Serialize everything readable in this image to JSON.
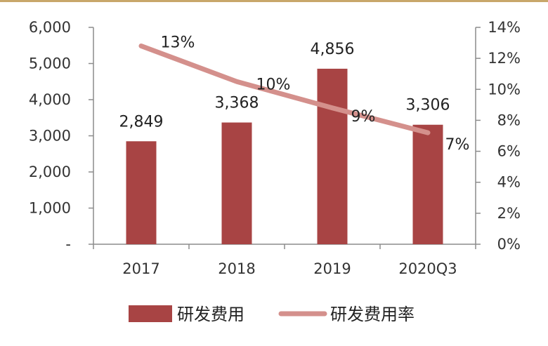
{
  "colors": {
    "bar": "#A84444",
    "line": "#D4908C",
    "axis": "#8C8C8C",
    "top_rule": "#C8A76A"
  },
  "chart_data": {
    "type": "bar+line",
    "categories": [
      "2017",
      "2018",
      "2019",
      "2020Q3"
    ],
    "series": [
      {
        "name": "研发费用",
        "type": "bar",
        "axis": "left",
        "values": [
          2849,
          3368,
          4856,
          3306
        ],
        "labels": [
          "2,849",
          "3,368",
          "4,856",
          "3,306"
        ]
      },
      {
        "name": "研发费用率",
        "type": "line",
        "axis": "right",
        "values": [
          12.8,
          10.5,
          8.8,
          7.2
        ],
        "labels": [
          "13%",
          "10%",
          "9%",
          "7%"
        ]
      }
    ],
    "left_axis": {
      "min": 0,
      "max": 6000,
      "ticks": [
        0,
        1000,
        2000,
        3000,
        4000,
        5000,
        6000
      ],
      "tick_labels": [
        "-",
        "1,000",
        "2,000",
        "3,000",
        "4,000",
        "5,000",
        "6,000"
      ]
    },
    "right_axis": {
      "min": 0,
      "max": 14,
      "ticks": [
        0,
        2,
        4,
        6,
        8,
        10,
        12,
        14
      ],
      "tick_labels": [
        "0%",
        "2%",
        "4%",
        "6%",
        "8%",
        "10%",
        "12%",
        "14%"
      ]
    },
    "legend_position": "bottom",
    "grid": false
  }
}
